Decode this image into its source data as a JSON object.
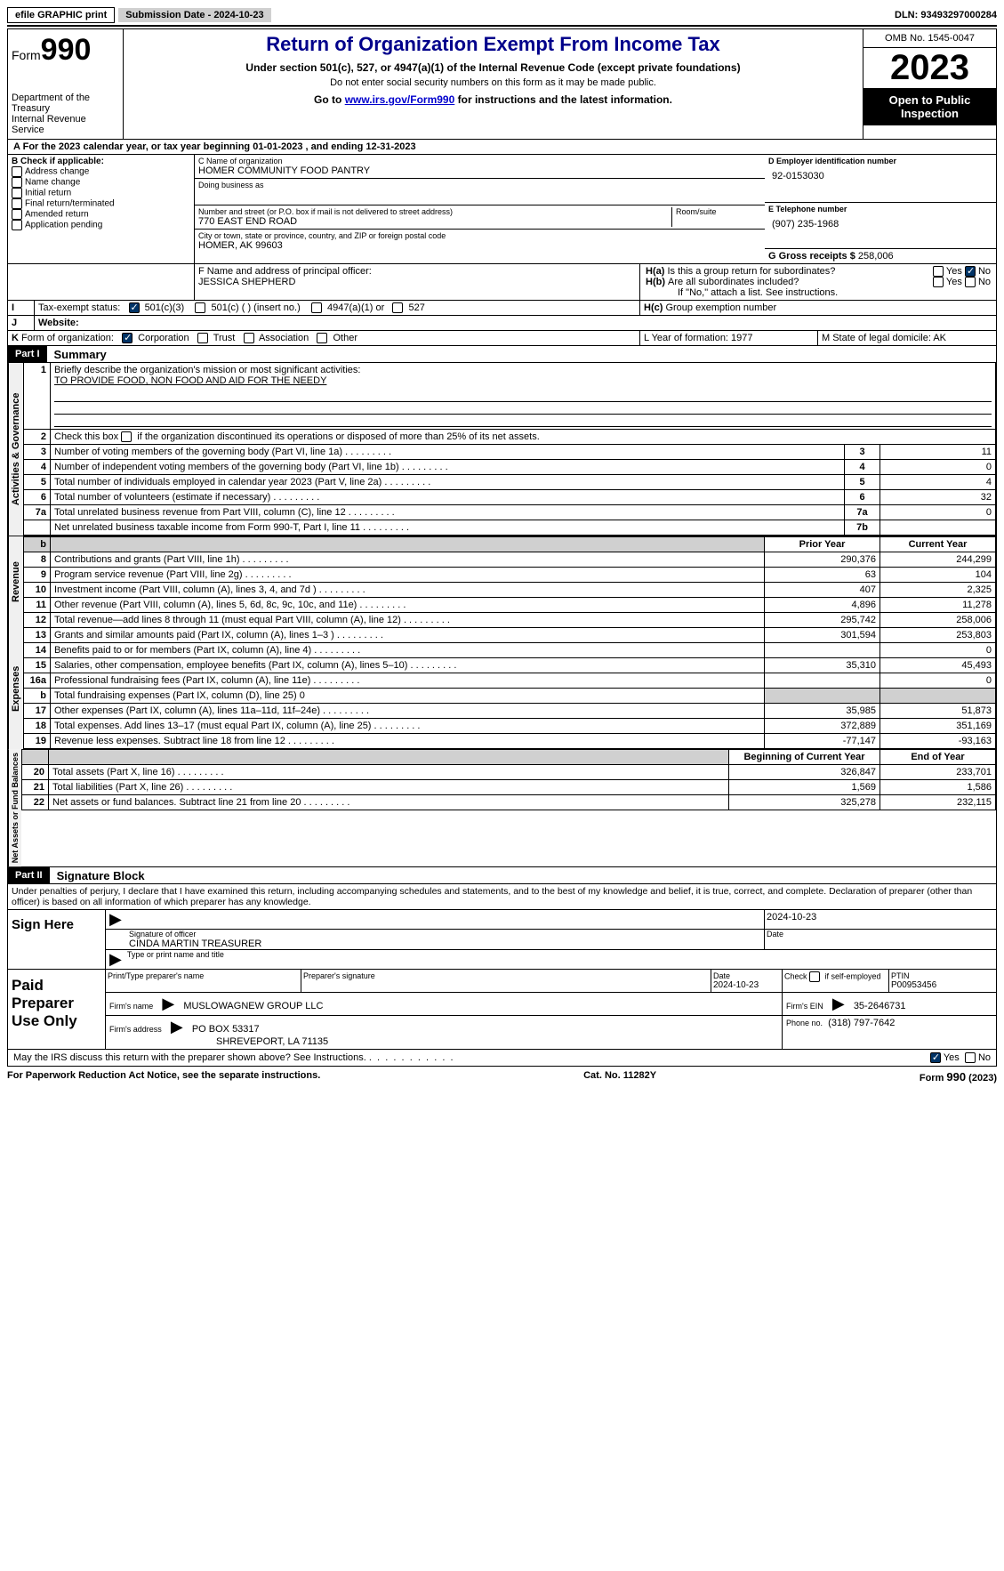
{
  "topbar": {
    "efile": "efile GRAPHIC print",
    "submission": "Submission Date - 2024-10-23",
    "dln": "DLN: 93493297000284"
  },
  "header": {
    "form_word": "Form",
    "form_num": "990",
    "dept": "Department of the Treasury",
    "irs": "Internal Revenue Service",
    "title": "Return of Organization Exempt From Income Tax",
    "sub1": "Under section 501(c), 527, or 4947(a)(1) of the Internal Revenue Code (except private foundations)",
    "sub2": "Do not enter social security numbers on this form as it may be made public.",
    "sub3_pre": "Go to ",
    "sub3_link": "www.irs.gov/Form990",
    "sub3_post": " for instructions and the latest information.",
    "omb": "OMB No. 1545-0047",
    "year": "2023",
    "open": "Open to Public Inspection"
  },
  "line_a": "For the 2023 calendar year, or tax year beginning 01-01-2023   , and ending 12-31-2023",
  "box_b": {
    "label": "B Check if applicable:",
    "items": [
      "Address change",
      "Name change",
      "Initial return",
      "Final return/terminated",
      "Amended return",
      "Application pending"
    ]
  },
  "box_c": {
    "name_label": "C Name of organization",
    "name": "HOMER COMMUNITY FOOD PANTRY",
    "dba_label": "Doing business as",
    "addr_label": "Number and street (or P.O. box if mail is not delivered to street address)",
    "addr": "770 EAST END ROAD",
    "room_label": "Room/suite",
    "city_label": "City or town, state or province, country, and ZIP or foreign postal code",
    "city": "HOMER, AK  99603"
  },
  "box_d": {
    "label": "D Employer identification number",
    "value": "92-0153030"
  },
  "box_e": {
    "label": "E Telephone number",
    "value": "(907) 235-1968"
  },
  "box_g": {
    "label": "G Gross receipts $",
    "value": "258,006"
  },
  "box_f": {
    "label": "F  Name and address of principal officer:",
    "value": "JESSICA SHEPHERD"
  },
  "box_h": {
    "ha": "Is this a group return for subordinates?",
    "hb": "Are all subordinates included?",
    "hb_note": "If \"No,\" attach a list. See instructions.",
    "hc": "Group exemption number",
    "yes": "Yes",
    "no": "No"
  },
  "box_i": {
    "label": "Tax-exempt status:",
    "o1": "501(c)(3)",
    "o2": "501(c) (  ) (insert no.)",
    "o3": "4947(a)(1) or",
    "o4": "527"
  },
  "box_j": {
    "label": "Website:"
  },
  "box_k": {
    "label": "Form of organization:",
    "o1": "Corporation",
    "o2": "Trust",
    "o3": "Association",
    "o4": "Other"
  },
  "box_l": {
    "label": "L Year of formation: 1977"
  },
  "box_m": {
    "label": "M State of legal domicile: AK"
  },
  "part1": {
    "label": "Part I",
    "title": "Summary"
  },
  "sections": {
    "ag": "Activities & Governance",
    "rev": "Revenue",
    "exp": "Expenses",
    "nab": "Net Assets or Fund Balances"
  },
  "summary": {
    "line1_label": "Briefly describe the organization's mission or most significant activities:",
    "line1_text": "TO PROVIDE FOOD, NON FOOD AND AID FOR THE NEEDY",
    "line2": "Check this box        if the organization discontinued its operations or disposed of more than 25% of its net assets.",
    "rows_gov": [
      {
        "n": "3",
        "label": "Number of voting members of the governing body (Part VI, line 1a)",
        "box": "3",
        "val": "11"
      },
      {
        "n": "4",
        "label": "Number of independent voting members of the governing body (Part VI, line 1b)",
        "box": "4",
        "val": "0"
      },
      {
        "n": "5",
        "label": "Total number of individuals employed in calendar year 2023 (Part V, line 2a)",
        "box": "5",
        "val": "4"
      },
      {
        "n": "6",
        "label": "Total number of volunteers (estimate if necessary)",
        "box": "6",
        "val": "32"
      },
      {
        "n": "7a",
        "label": "Total unrelated business revenue from Part VIII, column (C), line 12",
        "box": "7a",
        "val": "0"
      },
      {
        "n": "",
        "label": "Net unrelated business taxable income from Form 990-T, Part I, line 11",
        "box": "7b",
        "val": ""
      }
    ],
    "col_prior": "Prior Year",
    "col_current": "Current Year",
    "rows_rev": [
      {
        "n": "8",
        "label": "Contributions and grants (Part VIII, line 1h)",
        "prior": "290,376",
        "cur": "244,299"
      },
      {
        "n": "9",
        "label": "Program service revenue (Part VIII, line 2g)",
        "prior": "63",
        "cur": "104"
      },
      {
        "n": "10",
        "label": "Investment income (Part VIII, column (A), lines 3, 4, and 7d )",
        "prior": "407",
        "cur": "2,325"
      },
      {
        "n": "11",
        "label": "Other revenue (Part VIII, column (A), lines 5, 6d, 8c, 9c, 10c, and 11e)",
        "prior": "4,896",
        "cur": "11,278"
      },
      {
        "n": "12",
        "label": "Total revenue—add lines 8 through 11 (must equal Part VIII, column (A), line 12)",
        "prior": "295,742",
        "cur": "258,006"
      }
    ],
    "rows_exp": [
      {
        "n": "13",
        "label": "Grants and similar amounts paid (Part IX, column (A), lines 1–3 )",
        "prior": "301,594",
        "cur": "253,803"
      },
      {
        "n": "14",
        "label": "Benefits paid to or for members (Part IX, column (A), line 4)",
        "prior": "",
        "cur": "0"
      },
      {
        "n": "15",
        "label": "Salaries, other compensation, employee benefits (Part IX, column (A), lines 5–10)",
        "prior": "35,310",
        "cur": "45,493"
      },
      {
        "n": "16a",
        "label": "Professional fundraising fees (Part IX, column (A), line 11e)",
        "prior": "",
        "cur": "0"
      },
      {
        "n": "b",
        "label": "Total fundraising expenses (Part IX, column (D), line 25) 0",
        "prior": "SHADE",
        "cur": "SHADE"
      },
      {
        "n": "17",
        "label": "Other expenses (Part IX, column (A), lines 11a–11d, 11f–24e)",
        "prior": "35,985",
        "cur": "51,873"
      },
      {
        "n": "18",
        "label": "Total expenses. Add lines 13–17 (must equal Part IX, column (A), line 25)",
        "prior": "372,889",
        "cur": "351,169"
      },
      {
        "n": "19",
        "label": "Revenue less expenses. Subtract line 18 from line 12",
        "prior": "-77,147",
        "cur": "-93,163"
      }
    ],
    "col_begin": "Beginning of Current Year",
    "col_end": "End of Year",
    "rows_nab": [
      {
        "n": "20",
        "label": "Total assets (Part X, line 16)",
        "prior": "326,847",
        "cur": "233,701"
      },
      {
        "n": "21",
        "label": "Total liabilities (Part X, line 26)",
        "prior": "1,569",
        "cur": "1,586"
      },
      {
        "n": "22",
        "label": "Net assets or fund balances. Subtract line 21 from line 20",
        "prior": "325,278",
        "cur": "232,115"
      }
    ]
  },
  "part2": {
    "label": "Part II",
    "title": "Signature Block"
  },
  "penalties": "Under penalties of perjury, I declare that I have examined this return, including accompanying schedules and statements, and to the best of my knowledge and belief, it is true, correct, and complete. Declaration of preparer (other than officer) is based on all information of which preparer has any knowledge.",
  "sign": {
    "here": "Sign Here",
    "sig_label": "Signature of officer",
    "officer": "CINDA MARTIN  TREASURER",
    "name_label": "Type or print name and title",
    "date_label": "Date",
    "date": "2024-10-23"
  },
  "paid": {
    "label": "Paid Preparer Use Only",
    "print_label": "Print/Type preparer's name",
    "sig_label": "Preparer's signature",
    "date_label": "Date",
    "date": "2024-10-23",
    "check_label": "Check          if self-employed",
    "ptin_label": "PTIN",
    "ptin": "P00953456",
    "firm_name_label": "Firm's name",
    "firm_name": "MUSLOWAGNEW GROUP LLC",
    "firm_ein_label": "Firm's EIN",
    "firm_ein": "35-2646731",
    "firm_addr_label": "Firm's address",
    "firm_addr1": "PO BOX 53317",
    "firm_addr2": "SHREVEPORT, LA  71135",
    "phone_label": "Phone no.",
    "phone": "(318) 797-7642"
  },
  "discuss": "May the IRS discuss this return with the preparer shown above? See Instructions.",
  "footer": {
    "left": "For Paperwork Reduction Act Notice, see the separate instructions.",
    "mid": "Cat. No. 11282Y",
    "right": "Form 990 (2023)"
  }
}
